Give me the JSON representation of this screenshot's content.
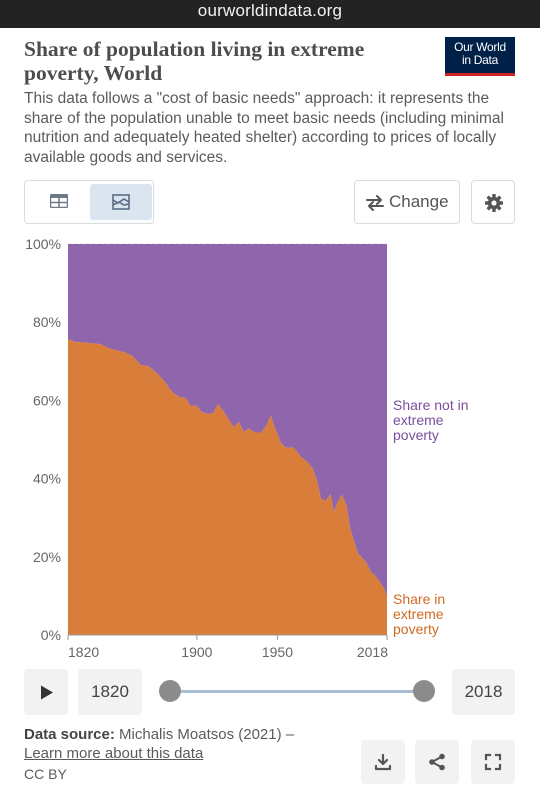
{
  "browser": {
    "url": "ourworldindata.org"
  },
  "header": {
    "title": "Share of population living in extreme poverty, World",
    "logo_line1": "Our World",
    "logo_line2": "in Data",
    "subtitle": "This data follows a \"cost of basic needs\" approach: it represents the share of the population unable to meet basic needs (including minimal nutrition and adequately heated shelter) according to prices of locally available goods and services."
  },
  "toolbar": {
    "change_label": "Change",
    "active_tab": "chart",
    "icons": [
      "table-icon",
      "area-chart-icon",
      "swap-arrows-icon",
      "gear-icon"
    ]
  },
  "chart_data": {
    "type": "area",
    "stacked": true,
    "ylim": [
      0,
      100
    ],
    "xlim": [
      1820,
      2018
    ],
    "y_ticks": [
      "0%",
      "20%",
      "40%",
      "60%",
      "80%",
      "100%"
    ],
    "x_ticks": [
      "1820",
      "1900",
      "1950",
      "2018"
    ],
    "x_tick_values": [
      1820,
      1900,
      1950,
      2018
    ],
    "colors": {
      "in_poverty": "#d97d3b",
      "not_in_poverty": "#8f66ab"
    },
    "years": [
      1820,
      1825,
      1830,
      1835,
      1840,
      1845,
      1850,
      1855,
      1860,
      1865,
      1870,
      1875,
      1880,
      1883,
      1886,
      1890,
      1893,
      1896,
      1900,
      1903,
      1906,
      1910,
      1913,
      1916,
      1920,
      1923,
      1926,
      1929,
      1932,
      1936,
      1940,
      1943,
      1946,
      1948,
      1950,
      1952,
      1955,
      1960,
      1965,
      1968,
      1972,
      1975,
      1977,
      1980,
      1983,
      1985,
      1987,
      1990,
      1993,
      1995,
      1998,
      2000,
      2002,
      2005,
      2008,
      2010,
      2013,
      2016,
      2018
    ],
    "series": [
      {
        "name": "Share in extreme poverty",
        "label_lines": [
          "Share in",
          "extreme",
          "poverty"
        ],
        "values": [
          75.6,
          74.9,
          74.8,
          74.6,
          74.4,
          73.4,
          72.8,
          72.3,
          71.4,
          69.1,
          68.7,
          67.0,
          64.8,
          63.0,
          61.7,
          60.7,
          60.6,
          58.6,
          58.6,
          57.1,
          56.6,
          56.7,
          59.0,
          57.5,
          55.0,
          53.1,
          54.5,
          51.9,
          52.8,
          51.8,
          51.8,
          53.5,
          56.1,
          53.4,
          51.5,
          49.2,
          48.0,
          47.9,
          45.4,
          44.5,
          42.5,
          38.8,
          34.8,
          34.3,
          36.0,
          31.4,
          33.7,
          35.9,
          33.0,
          27.4,
          23.4,
          20.8,
          20.0,
          18.6,
          16.1,
          15.4,
          13.9,
          12.0,
          9.9
        ]
      },
      {
        "name": "Share not in extreme poverty",
        "label_lines": [
          "Share not in",
          "extreme",
          "poverty"
        ],
        "values": [
          24.4,
          25.1,
          25.2,
          25.4,
          25.6,
          26.6,
          27.2,
          27.7,
          28.6,
          30.9,
          31.3,
          33.0,
          35.2,
          37.0,
          38.3,
          39.3,
          39.4,
          41.4,
          41.4,
          42.9,
          43.4,
          43.3,
          41.0,
          42.5,
          45.0,
          46.9,
          45.5,
          48.1,
          47.2,
          48.2,
          48.2,
          46.5,
          43.9,
          46.6,
          48.5,
          50.8,
          52.0,
          52.1,
          54.6,
          55.5,
          57.5,
          61.2,
          65.2,
          65.7,
          64.0,
          68.6,
          66.3,
          64.1,
          67.0,
          72.6,
          76.6,
          79.2,
          80.0,
          81.4,
          83.9,
          84.6,
          86.1,
          88.0,
          90.1
        ]
      }
    ]
  },
  "timeline": {
    "start_year": "1820",
    "end_year": "2018"
  },
  "footer": {
    "source_label": "Data source:",
    "source_text": "Michalis Moatsos (2021) –",
    "learn_more": "Learn more about this data",
    "license": "CC BY"
  }
}
